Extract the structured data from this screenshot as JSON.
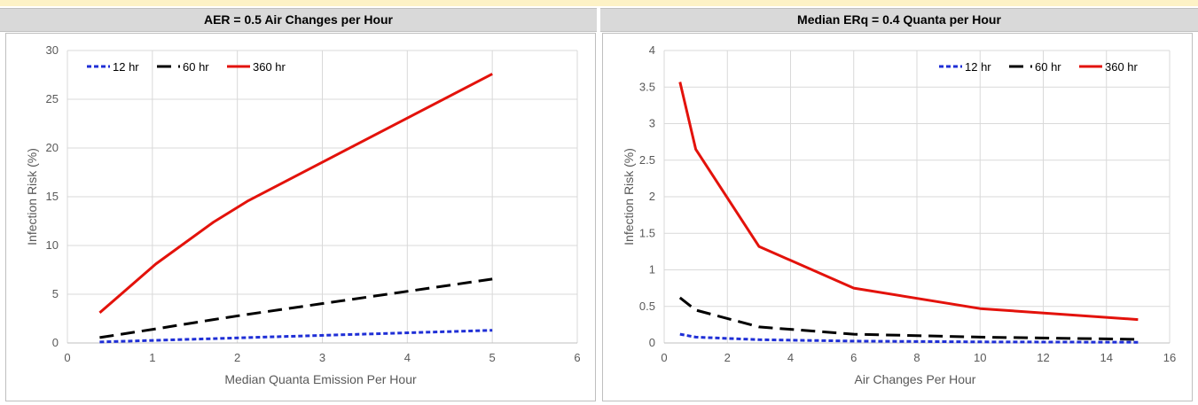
{
  "panels": {
    "left_title": "AER = 0.5 Air Changes per Hour",
    "right_title": "Median ERq = 0.4 Quanta per Hour"
  },
  "colors": {
    "12 hr": "#1f2fd6",
    "60 hr": "#000000",
    "360 hr": "#e3120b",
    "title_band": "#d9d9d9",
    "top_strip": "#fdf2c6",
    "grid": "#d9d9d9"
  },
  "chart_data": [
    {
      "type": "line",
      "title": "AER = 0.5 Air Changes per Hour",
      "xlabel": "Median Quanta Emission Per Hour",
      "ylabel": "Infection Risk (%)",
      "xlim": [
        0,
        6
      ],
      "ylim": [
        0,
        30
      ],
      "xticks": [
        0,
        1,
        2,
        3,
        4,
        5,
        6
      ],
      "yticks": [
        0,
        5,
        10,
        15,
        20,
        25,
        30
      ],
      "grid": true,
      "legend": "top-left",
      "series": [
        {
          "name": "12 hr",
          "style": "dotted",
          "x": [
            0.38,
            1.04,
            1.72,
            2.13,
            5.0
          ],
          "y": [
            0.1,
            0.27,
            0.45,
            0.55,
            1.3
          ]
        },
        {
          "name": "60 hr",
          "style": "dashed",
          "x": [
            0.38,
            1.04,
            1.72,
            2.13,
            5.0
          ],
          "y": [
            0.55,
            1.45,
            2.4,
            2.95,
            6.55
          ]
        },
        {
          "name": "360 hr",
          "style": "solid",
          "x": [
            0.38,
            1.04,
            1.72,
            2.13,
            5.0
          ],
          "y": [
            3.1,
            8.1,
            12.4,
            14.6,
            27.6
          ]
        }
      ]
    },
    {
      "type": "line",
      "title": "Median ERq = 0.4 Quanta per Hour",
      "xlabel": "Air Changes Per Hour",
      "ylabel": "Infection Risk (%)",
      "xlim": [
        0,
        16
      ],
      "ylim": [
        0,
        4
      ],
      "xticks": [
        0,
        2,
        4,
        6,
        8,
        10,
        12,
        14,
        16
      ],
      "yticks": [
        0,
        0.5,
        1,
        1.5,
        2,
        2.5,
        3,
        3.5,
        4
      ],
      "grid": true,
      "legend": "top-right",
      "series": [
        {
          "name": "12 hr",
          "style": "dotted",
          "x": [
            0.5,
            1,
            3,
            6,
            10,
            15
          ],
          "y": [
            0.12,
            0.08,
            0.045,
            0.025,
            0.015,
            0.01
          ]
        },
        {
          "name": "60 hr",
          "style": "dashed",
          "x": [
            0.5,
            1,
            3,
            6,
            10,
            15
          ],
          "y": [
            0.62,
            0.45,
            0.22,
            0.12,
            0.08,
            0.05
          ]
        },
        {
          "name": "360 hr",
          "style": "solid",
          "x": [
            0.5,
            1,
            3,
            6,
            10,
            15
          ],
          "y": [
            3.57,
            2.65,
            1.32,
            0.75,
            0.47,
            0.32
          ]
        }
      ]
    }
  ]
}
